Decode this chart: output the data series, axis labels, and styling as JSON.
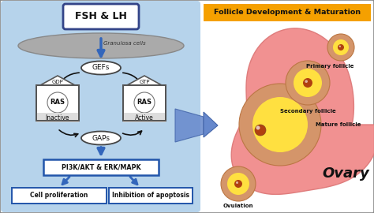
{
  "bg_color": "#f8f8f8",
  "left_panel_color": "#aacce8",
  "title_box_color": "#f5a000",
  "title_text": "Follicle Development & Maturation",
  "fsh_lh_text": "FSH & LH",
  "granulosa_text": "Granulosa cells",
  "gefs_text": "GEFs",
  "gaps_text": "GAPs",
  "gdp_text": "GDP",
  "gtp_text": "GTP",
  "inactive_text": "Inactive",
  "active_text": "Active",
  "pi3k_text": "PI3K/AKT & ERK/MAPK",
  "cell_prolif_text": "Cell proliferation",
  "inhib_text": "Inhibition of apoptosis",
  "primary_text": "Primary follicle",
  "secondary_text": "Secondary follicle",
  "mature_text": "Mature follicle",
  "ovulation_text": "Ovulation",
  "ovary_text": "Ovary",
  "blue_arrow": "#3366bb",
  "black_arrow": "#111111",
  "box_border": "#2255aa",
  "ovary_pink": "#f08888",
  "follicle_ring": "#d4956a",
  "follicle_yellow": "#ffe040",
  "follicle_core": "#b04010",
  "follicle_grey": "#aaaaaa",
  "gran_color": "#999999"
}
